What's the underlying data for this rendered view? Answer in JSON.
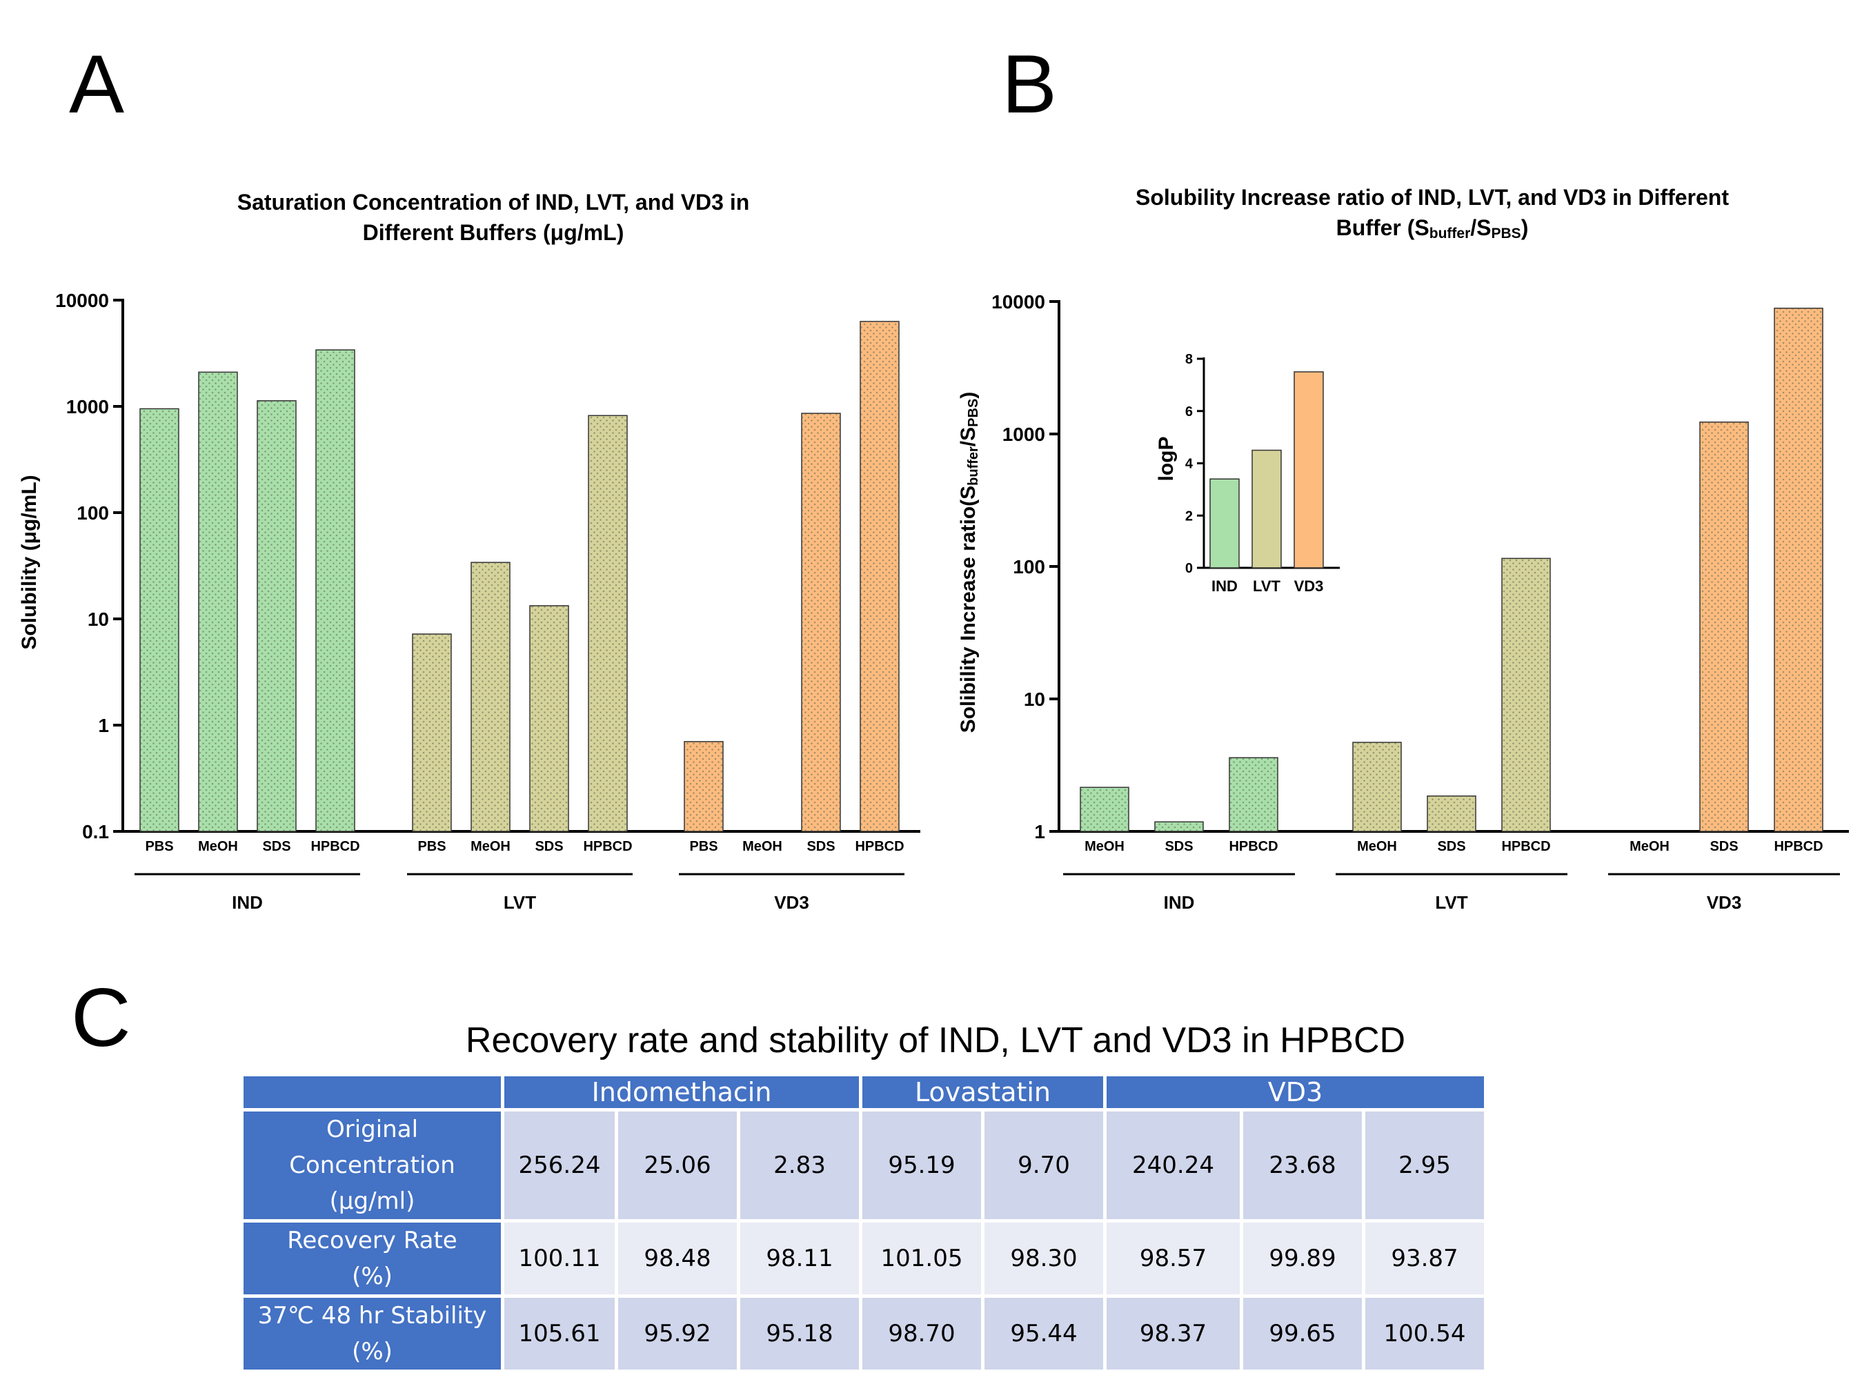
{
  "panel_letters": {
    "a": "A",
    "b": "B",
    "c": "C"
  },
  "colors": {
    "IND": "#a9dfa9",
    "LVT": "#d6d39a",
    "VD3": "#fdbb7e",
    "header": "#4472c4",
    "row_odd": "#cfd5ea",
    "row_even": "#e9ebf5"
  },
  "chart_data": [
    {
      "type": "bar",
      "title": "Saturation Concentration of IND, LVT, and VD3 in",
      "subtitle": "Different Buffers (μg/mL)",
      "ylabel": "Solubility (μg/mL)",
      "yscale": "log",
      "ylim": [
        0.1,
        10000
      ],
      "yticks": [
        "10000",
        "1000",
        "100",
        "10",
        "1",
        "0.1"
      ],
      "groups": [
        {
          "name": "IND",
          "categories": [
            "PBS",
            "MeOH",
            "SDS",
            "HPBCD"
          ],
          "values": [
            950,
            2100,
            1130,
            3400
          ]
        },
        {
          "name": "LVT",
          "categories": [
            "PBS",
            "MeOH",
            "SDS",
            "HPBCD"
          ],
          "values": [
            7.2,
            34,
            13.3,
            820
          ]
        },
        {
          "name": "VD3",
          "categories": [
            "PBS",
            "MeOH",
            "SDS",
            "HPBCD"
          ],
          "values": [
            0.7,
            null,
            860,
            6300
          ]
        }
      ]
    },
    {
      "type": "bar",
      "title": "Solubility Increase ratio of IND, LVT, and VD3 in Different",
      "subtitle": "Buffer (Sbuffer/SPBS)",
      "ylabel": "Solibility Increase ratio(Sbuffer/SPBS)",
      "yscale": "log",
      "ylim": [
        1,
        10000
      ],
      "yticks": [
        "10000",
        "1000",
        "100",
        "10",
        "1"
      ],
      "groups": [
        {
          "name": "IND",
          "categories": [
            "MeOH",
            "SDS",
            "HPBCD"
          ],
          "values": [
            2.15,
            1.18,
            3.6
          ]
        },
        {
          "name": "LVT",
          "categories": [
            "MeOH",
            "SDS",
            "HPBCD"
          ],
          "values": [
            4.7,
            1.85,
            115
          ]
        },
        {
          "name": "VD3",
          "categories": [
            "MeOH",
            "SDS",
            "HPBCD"
          ],
          "values": [
            null,
            1230,
            8900
          ]
        }
      ]
    },
    {
      "type": "bar",
      "title": "",
      "ylabel": "logP",
      "ylim": [
        0,
        8
      ],
      "yticks": [
        "8",
        "6",
        "4",
        "2",
        "0"
      ],
      "categories": [
        "IND",
        "LVT",
        "VD3"
      ],
      "values": [
        3.4,
        4.5,
        7.5
      ]
    }
  ],
  "table": {
    "title": "Recovery rate and stability of IND, LVT and VD3 in HPBCD",
    "header": [
      "",
      "Indomethacin",
      "Lovastatin",
      "VD3"
    ],
    "rows": [
      {
        "label1": "Original",
        "label2": "Concentration",
        "label3": "(μg/ml)",
        "values": [
          "256.24",
          "25.06",
          "2.83",
          "95.19",
          "9.70",
          "240.24",
          "23.68",
          "2.95"
        ]
      },
      {
        "label1": "Recovery Rate",
        "label2": "(%)",
        "label3": "",
        "values": [
          "100.11",
          "98.48",
          "98.11",
          "101.05",
          "98.30",
          "98.57",
          "99.89",
          "93.87"
        ]
      },
      {
        "label1": "37℃ 48 hr Stability",
        "label2": "(%)",
        "label3": "",
        "values": [
          "105.61",
          "95.92",
          "95.18",
          "98.70",
          "95.44",
          "98.37",
          "99.65",
          "100.54"
        ]
      }
    ]
  }
}
